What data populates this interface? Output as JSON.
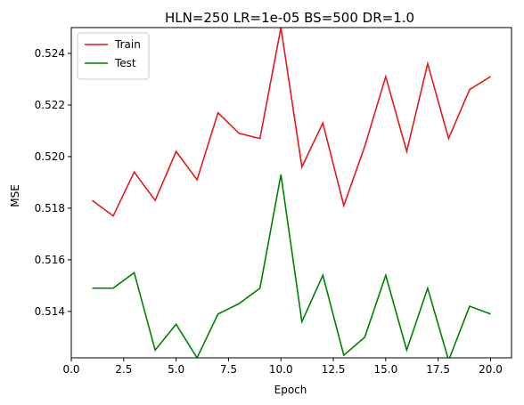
{
  "chart_data": {
    "type": "line",
    "title": "HLN=250 LR=1e-05 BS=500 DR=1.0",
    "xlabel": "Epoch",
    "ylabel": "MSE",
    "xlim": [
      0.0,
      21.0
    ],
    "ylim": [
      0.5122,
      0.525
    ],
    "x_ticks": [
      "0.0",
      "2.5",
      "5.0",
      "7.5",
      "10.0",
      "12.5",
      "15.0",
      "17.5",
      "20.0"
    ],
    "x_tick_values": [
      0,
      2.5,
      5,
      7.5,
      10,
      12.5,
      15,
      17.5,
      20
    ],
    "y_ticks": [
      "0.514",
      "0.516",
      "0.518",
      "0.520",
      "0.522",
      "0.524"
    ],
    "y_tick_values": [
      0.514,
      0.516,
      0.518,
      0.52,
      0.522,
      0.524
    ],
    "grid": false,
    "legend_position": "top-left",
    "x": [
      1,
      2,
      3,
      4,
      5,
      6,
      7,
      8,
      9,
      10,
      11,
      12,
      13,
      14,
      15,
      16,
      17,
      18,
      19,
      20
    ],
    "series": [
      {
        "name": "Train",
        "color": "#e41a1c",
        "values": [
          0.5183,
          0.5177,
          0.5194,
          0.5183,
          0.5202,
          0.5191,
          0.5217,
          0.5209,
          0.5207,
          0.525,
          0.5196,
          0.5213,
          0.5181,
          0.5204,
          0.5231,
          0.5202,
          0.5236,
          0.5207,
          0.5226,
          0.5231
        ]
      },
      {
        "name": "Test",
        "color": "#008000",
        "values": [
          0.5149,
          0.5149,
          0.5155,
          0.5125,
          0.5135,
          0.5122,
          0.5139,
          0.5143,
          0.5149,
          0.5193,
          0.5136,
          0.5154,
          0.5123,
          0.513,
          0.5154,
          0.5125,
          0.5149,
          0.5121,
          0.5142,
          0.5139
        ]
      }
    ]
  }
}
